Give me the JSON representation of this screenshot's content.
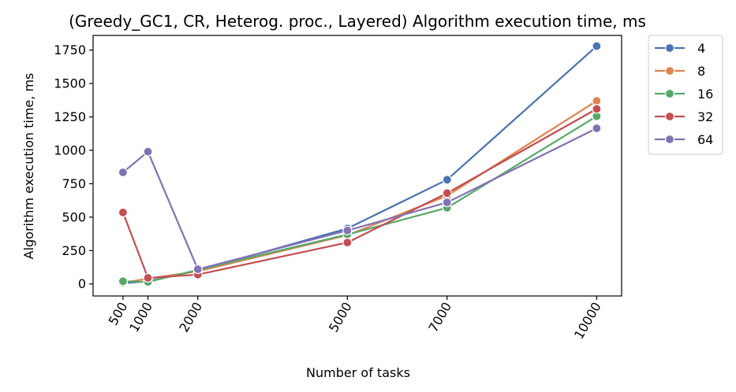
{
  "chart_data": {
    "type": "line",
    "title": "(Greedy_GC1, CR, Heterog. proc., Layered) Algorithm execution time, ms",
    "xlabel": "Number of tasks",
    "ylabel": "Algorithm execution time, ms",
    "x": [
      500,
      1000,
      2000,
      5000,
      7000,
      10000
    ],
    "x_ticks": [
      "500",
      "1000",
      "2000",
      "5000",
      "7000",
      "10000"
    ],
    "y_ticks": [
      0,
      250,
      500,
      750,
      1000,
      1250,
      1500,
      1750
    ],
    "xlim": [
      -100,
      10500
    ],
    "ylim": [
      -90,
      1860
    ],
    "grid": false,
    "legend_position": "outside-top-right",
    "series": [
      {
        "name": "4",
        "color": "#4c72b0",
        "values": [
          5,
          20,
          100,
          415,
          780,
          1780
        ]
      },
      {
        "name": "8",
        "color": "#dd8452",
        "values": [
          10,
          40,
          95,
          365,
          660,
          1370
        ]
      },
      {
        "name": "16",
        "color": "#55a868",
        "values": [
          20,
          15,
          105,
          370,
          570,
          1255
        ]
      },
      {
        "name": "32",
        "color": "#c44e52",
        "values": [
          535,
          45,
          70,
          310,
          680,
          1310
        ]
      },
      {
        "name": "64",
        "color": "#8172b3",
        "values": [
          835,
          990,
          110,
          400,
          610,
          1165
        ]
      }
    ]
  }
}
